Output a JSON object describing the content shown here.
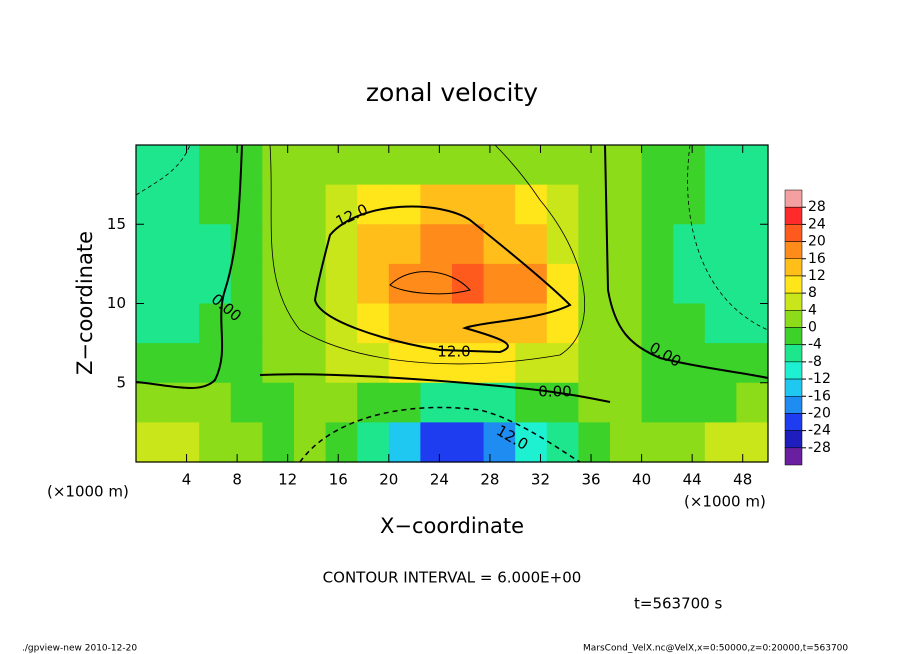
{
  "chart_data": {
    "type": "heatmap",
    "title": "zonal velocity",
    "x_label": "X−coordinate",
    "y_label": "Z−coordinate",
    "x_unit_labels": [
      "(×1000 m)",
      "(×1000 m)"
    ],
    "xlim": [
      0,
      50
    ],
    "ylim": [
      0,
      20
    ],
    "xticks": [
      4,
      8,
      12,
      16,
      20,
      24,
      28,
      32,
      36,
      40,
      44,
      48
    ],
    "yticks": [
      5,
      10,
      15
    ],
    "z": [
      [
        -6,
        -6,
        -4,
        -2,
        0,
        1,
        2,
        3,
        3,
        3,
        3,
        3,
        2,
        2,
        1,
        0,
        -2,
        -4,
        -5,
        -6
      ],
      [
        -8,
        -6,
        -4,
        -2,
        0,
        2,
        4,
        8,
        11,
        12,
        12,
        12,
        8,
        4,
        2,
        0,
        -2,
        -4,
        -6,
        -8
      ],
      [
        -8,
        -8,
        -6,
        -2,
        0,
        3,
        6,
        12,
        15,
        16,
        16,
        15,
        13,
        6,
        2,
        0,
        -2,
        -6,
        -8,
        -8
      ],
      [
        -8,
        -8,
        -6,
        -2,
        0,
        3,
        6,
        14,
        17,
        19,
        21,
        19,
        16,
        8,
        3,
        0,
        -2,
        -6,
        -8,
        -8
      ],
      [
        -8,
        -6,
        -4,
        -2,
        0,
        2,
        4,
        10,
        14,
        15,
        15,
        14,
        12,
        8,
        3,
        0,
        -2,
        -4,
        -6,
        -6
      ],
      [
        -2,
        -2,
        -2,
        -1,
        0,
        2,
        4,
        6,
        8,
        8,
        8,
        8,
        6,
        4,
        2,
        0,
        -2,
        -4,
        -4,
        -4
      ],
      [
        2,
        0,
        0,
        -1,
        -2,
        0,
        0,
        -2,
        -4,
        -6,
        -6,
        -6,
        -4,
        -2,
        0,
        0,
        -2,
        -2,
        -2,
        0
      ],
      [
        6,
        4,
        2,
        0,
        -1,
        0,
        -4,
        -8,
        -16,
        -22,
        -22,
        -20,
        -12,
        -6,
        -2,
        0,
        0,
        2,
        4,
        6
      ]
    ],
    "colorbar": {
      "levels": [
        28,
        24,
        20,
        16,
        12,
        8,
        4,
        0,
        -4,
        -8,
        -12,
        -16,
        -20,
        -24,
        -28
      ],
      "colors": [
        "#f4a0a0",
        "#ff2a2a",
        "#ff5a1e",
        "#ff8c1a",
        "#ffbe1a",
        "#ffe61a",
        "#c8e61a",
        "#8cdc1a",
        "#3cd22a",
        "#1ee68c",
        "#1ef0d2",
        "#1ec8f0",
        "#1e8cf0",
        "#1e3cf0",
        "#1e1ebe",
        "#6a1ea0"
      ]
    },
    "contour_labels": [
      "12.0",
      "12.0",
      "0.00",
      "0.00",
      "0.00",
      "12.0"
    ],
    "contour_interval": "CONTOUR INTERVAL = 6.000E+00",
    "time_label": "t=563700 s",
    "footer_left": "./gpview-new  2010-12-20",
    "footer_right": "MarsCond_VelX.nc@VelX,x=0:50000,z=0:20000,t=563700"
  }
}
